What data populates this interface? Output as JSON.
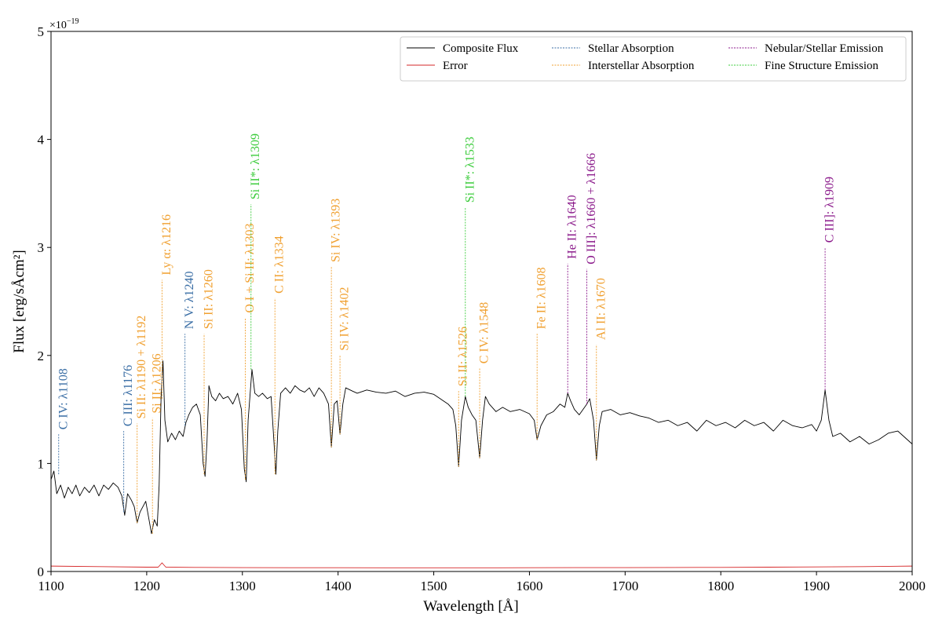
{
  "chart_data": {
    "type": "line",
    "x_label": "Wavelength [Å]",
    "y_label": "Flux [erg/sÅcm²]",
    "y_offset_label": {
      "base": "×10",
      "exponent": "−19"
    },
    "xlim": [
      1100,
      2000
    ],
    "xticks": [
      1100,
      1200,
      1300,
      1400,
      1500,
      1600,
      1700,
      1800,
      1900,
      2000
    ],
    "ylim": [
      0,
      5
    ],
    "yticks": [
      0,
      1,
      2,
      3,
      4,
      5
    ],
    "legend": "upper right",
    "series": [
      {
        "name": "Composite Flux",
        "color": "#000000",
        "x": [
          1100,
          1103,
          1106,
          1110,
          1114,
          1118,
          1122,
          1126,
          1130,
          1135,
          1140,
          1145,
          1150,
          1155,
          1160,
          1165,
          1170,
          1174,
          1177,
          1180,
          1184,
          1187,
          1190,
          1193,
          1196,
          1199,
          1202,
          1205,
          1208,
          1211,
          1213,
          1215,
          1217,
          1219,
          1222,
          1226,
          1230,
          1234,
          1238,
          1241,
          1244,
          1248,
          1252,
          1256,
          1259,
          1261,
          1263,
          1265,
          1268,
          1272,
          1276,
          1280,
          1285,
          1290,
          1295,
          1299,
          1302,
          1304,
          1306,
          1310,
          1313,
          1317,
          1321,
          1326,
          1330,
          1333,
          1335,
          1337,
          1340,
          1345,
          1350,
          1355,
          1360,
          1365,
          1370,
          1375,
          1380,
          1385,
          1390,
          1393,
          1396,
          1399,
          1402,
          1405,
          1408,
          1415,
          1420,
          1430,
          1440,
          1450,
          1460,
          1470,
          1480,
          1490,
          1500,
          1510,
          1515,
          1520,
          1523,
          1526,
          1529,
          1533,
          1536,
          1540,
          1544,
          1548,
          1551,
          1554,
          1558,
          1565,
          1572,
          1580,
          1590,
          1600,
          1605,
          1608,
          1612,
          1618,
          1625,
          1632,
          1637,
          1640,
          1643,
          1647,
          1652,
          1656,
          1660,
          1663,
          1667,
          1670,
          1673,
          1676,
          1685,
          1695,
          1705,
          1715,
          1725,
          1735,
          1745,
          1755,
          1765,
          1775,
          1785,
          1795,
          1805,
          1815,
          1825,
          1835,
          1845,
          1855,
          1865,
          1875,
          1885,
          1895,
          1900,
          1905,
          1909,
          1913,
          1917,
          1925,
          1935,
          1945,
          1955,
          1965,
          1975,
          1985,
          1995,
          2000
        ],
        "values": [
          0.85,
          0.93,
          0.72,
          0.8,
          0.68,
          0.78,
          0.72,
          0.8,
          0.7,
          0.78,
          0.73,
          0.8,
          0.7,
          0.8,
          0.76,
          0.82,
          0.78,
          0.7,
          0.52,
          0.72,
          0.66,
          0.6,
          0.45,
          0.55,
          0.6,
          0.65,
          0.5,
          0.35,
          0.48,
          0.42,
          0.8,
          1.6,
          1.95,
          1.4,
          1.2,
          1.28,
          1.22,
          1.3,
          1.25,
          1.38,
          1.45,
          1.52,
          1.55,
          1.45,
          1.0,
          0.88,
          1.2,
          1.72,
          1.62,
          1.58,
          1.65,
          1.6,
          1.62,
          1.55,
          1.65,
          1.5,
          0.95,
          0.83,
          1.4,
          1.87,
          1.65,
          1.62,
          1.65,
          1.6,
          1.62,
          1.2,
          0.9,
          1.3,
          1.65,
          1.7,
          1.65,
          1.72,
          1.68,
          1.66,
          1.7,
          1.62,
          1.7,
          1.65,
          1.55,
          1.15,
          1.55,
          1.58,
          1.27,
          1.55,
          1.7,
          1.67,
          1.65,
          1.68,
          1.66,
          1.65,
          1.67,
          1.62,
          1.65,
          1.66,
          1.64,
          1.58,
          1.55,
          1.5,
          1.35,
          0.97,
          1.4,
          1.62,
          1.52,
          1.45,
          1.4,
          1.05,
          1.4,
          1.62,
          1.55,
          1.48,
          1.52,
          1.48,
          1.5,
          1.46,
          1.4,
          1.22,
          1.35,
          1.45,
          1.48,
          1.55,
          1.52,
          1.65,
          1.58,
          1.5,
          1.45,
          1.5,
          1.55,
          1.6,
          1.4,
          1.03,
          1.35,
          1.48,
          1.5,
          1.45,
          1.47,
          1.44,
          1.42,
          1.38,
          1.4,
          1.35,
          1.38,
          1.3,
          1.4,
          1.35,
          1.38,
          1.33,
          1.4,
          1.35,
          1.38,
          1.3,
          1.4,
          1.35,
          1.33,
          1.36,
          1.3,
          1.4,
          1.68,
          1.4,
          1.25,
          1.28,
          1.2,
          1.25,
          1.18,
          1.22,
          1.28,
          1.3,
          1.22,
          1.18
        ]
      },
      {
        "name": "Error",
        "color": "#d62728",
        "x": [
          1100,
          1150,
          1200,
          1212,
          1216,
          1220,
          1250,
          1300,
          1350,
          1400,
          1450,
          1500,
          1550,
          1600,
          1650,
          1700,
          1750,
          1800,
          1850,
          1900,
          1950,
          2000
        ],
        "values": [
          0.05,
          0.045,
          0.04,
          0.04,
          0.08,
          0.04,
          0.038,
          0.036,
          0.035,
          0.035,
          0.034,
          0.034,
          0.034,
          0.035,
          0.036,
          0.036,
          0.037,
          0.038,
          0.04,
          0.042,
          0.045,
          0.05
        ]
      }
    ],
    "line_groups": [
      {
        "name": "Stellar Absorption",
        "color": "#3a6ea5",
        "lines": [
          {
            "label": "C IV: λ1108",
            "x": 1108,
            "y": [
              0.9,
              1.27
            ]
          },
          {
            "label": "C III: λ1176",
            "x": 1176,
            "y": [
              0.55,
              1.3
            ]
          },
          {
            "label": "N V: λ1240",
            "x": 1240,
            "y": [
              1.35,
              2.2
            ]
          }
        ]
      },
      {
        "name": "Interstellar Absorption",
        "color": "#f0a030",
        "lines": [
          {
            "label": "Si II: λ1190 + λ1192",
            "x": 1190,
            "y": [
              0.45,
              1.37
            ]
          },
          {
            "label": "Si II: λ1206",
            "x": 1206,
            "y": [
              0.35,
              1.42
            ]
          },
          {
            "label": "Ly α: λ1216",
            "x": 1216,
            "y": [
              1.6,
              2.7
            ]
          },
          {
            "label": "Si II: λ1260",
            "x": 1260,
            "y": [
              0.9,
              2.2
            ]
          },
          {
            "label": "O I + Si II: λ1303",
            "x": 1303,
            "y": [
              0.85,
              2.35
            ]
          },
          {
            "label": "C II: λ1334",
            "x": 1334,
            "y": [
              0.9,
              2.53
            ]
          },
          {
            "label": "Si IV: λ1393",
            "x": 1393,
            "y": [
              1.15,
              2.82
            ]
          },
          {
            "label": "Si IV: λ1402",
            "x": 1402,
            "y": [
              1.27,
              2.0
            ]
          },
          {
            "label": "Si II: λ1526",
            "x": 1526,
            "y": [
              0.97,
              1.67
            ]
          },
          {
            "label": "C IV: λ1548",
            "x": 1548,
            "y": [
              1.05,
              1.88
            ]
          },
          {
            "label": "Fe II: λ1608",
            "x": 1608,
            "y": [
              1.22,
              2.2
            ]
          },
          {
            "label": "Al II: λ1670",
            "x": 1670,
            "y": [
              1.03,
              2.1
            ]
          }
        ]
      },
      {
        "name": "Nebular/Stellar Emission",
        "color": "#8b1a8b",
        "lines": [
          {
            "label": "He II: λ1640",
            "x": 1640,
            "y": [
              1.65,
              2.85
            ]
          },
          {
            "label": "O III]: λ1660 + λ1666",
            "x": 1660,
            "y": [
              1.55,
              2.8
            ]
          },
          {
            "label": "C III]: λ1909",
            "x": 1909,
            "y": [
              1.68,
              3.0
            ]
          }
        ]
      },
      {
        "name": "Fine Structure Emission",
        "color": "#3ccc3c",
        "lines": [
          {
            "label": "Si II*: λ1309",
            "x": 1309,
            "y": [
              1.87,
              3.4
            ]
          },
          {
            "label": "Si II*: λ1533",
            "x": 1533,
            "y": [
              1.62,
              3.37
            ]
          }
        ]
      }
    ]
  }
}
